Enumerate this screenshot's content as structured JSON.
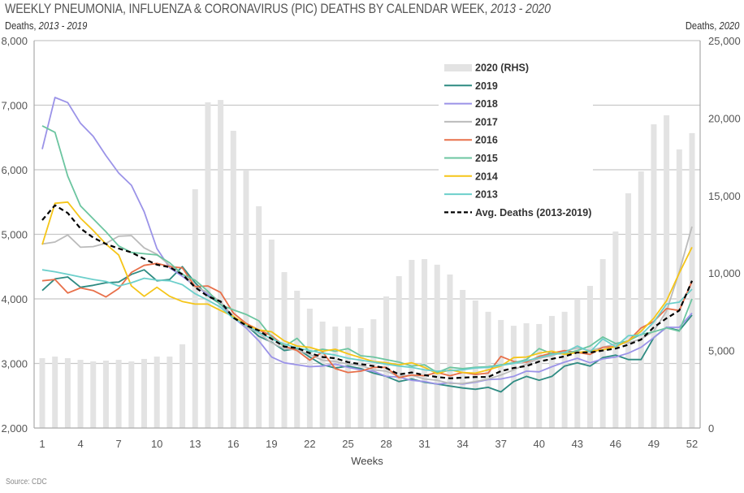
{
  "header": {
    "title_main": "WEEKLY PNEUMONIA, INFLUENZA & CORONAVIRUS (PIC) DEATHS BY CALENDAR WEEK, ",
    "title_italic": "2013 - 2020",
    "left_axis_title_main": "Deaths, ",
    "left_axis_title_italic": "2013 - 2019",
    "right_axis_title_main": "Deaths, ",
    "right_axis_title_italic": "2020"
  },
  "source": "Source: CDC",
  "chart_data": {
    "type": "bar+line",
    "title": "WEEKLY PNEUMONIA, INFLUENZA & CORONAVIRUS (PIC) DEATHS BY CALENDAR WEEK, 2013 - 2020",
    "xlabel": "Weeks",
    "ylabel_left": "Deaths, 2013 - 2019",
    "ylabel_right": "Deaths, 2020",
    "ylim_left": [
      2000,
      8000
    ],
    "ylim_right": [
      0,
      25000
    ],
    "yticks_left": [
      "2,000",
      "3,000",
      "4,000",
      "5,000",
      "6,000",
      "7,000",
      "8,000"
    ],
    "yticks_left_values": [
      2000,
      3000,
      4000,
      5000,
      6000,
      7000,
      8000
    ],
    "yticks_right": [
      "0",
      "5,000",
      "10,000",
      "15,000",
      "20,000",
      "25,000"
    ],
    "yticks_right_values": [
      0,
      5000,
      10000,
      15000,
      20000,
      25000
    ],
    "xticks": [
      1,
      4,
      7,
      10,
      13,
      16,
      19,
      22,
      25,
      28,
      31,
      34,
      37,
      40,
      43,
      46,
      49,
      52
    ],
    "xlim": [
      1,
      52
    ],
    "grid": true,
    "legend_position": "top-right",
    "x": [
      1,
      2,
      3,
      4,
      5,
      6,
      7,
      8,
      9,
      10,
      11,
      12,
      13,
      14,
      15,
      16,
      17,
      18,
      19,
      20,
      21,
      22,
      23,
      24,
      25,
      26,
      27,
      28,
      29,
      30,
      31,
      32,
      33,
      34,
      35,
      36,
      37,
      38,
      39,
      40,
      41,
      42,
      43,
      44,
      45,
      46,
      47,
      48,
      49,
      50,
      51,
      52
    ],
    "bars": {
      "name": "2020 (RHS)",
      "axis": "right",
      "color": "#e3e3e3",
      "values": [
        4510,
        4610,
        4510,
        4400,
        4300,
        4350,
        4400,
        4300,
        4460,
        4610,
        4610,
        5400,
        15410,
        21020,
        21170,
        19180,
        16610,
        14310,
        12160,
        10060,
        8860,
        7700,
        6870,
        6550,
        6550,
        6450,
        7020,
        8490,
        9800,
        10850,
        10900,
        10540,
        9910,
        8910,
        8230,
        7500,
        6970,
        6600,
        6760,
        6710,
        7230,
        7500,
        8330,
        9170,
        10900,
        12680,
        15150,
        16560,
        19600,
        20180,
        17980,
        19030
      ]
    },
    "series": [
      {
        "name": "2019",
        "color": "#2e8b82",
        "values": [
          4130,
          4310,
          4340,
          4180,
          4210,
          4250,
          4260,
          4380,
          4450,
          4280,
          4300,
          4500,
          4250,
          4050,
          3920,
          3720,
          3590,
          3420,
          3330,
          3200,
          3230,
          3100,
          2980,
          2930,
          2960,
          2920,
          2850,
          2800,
          2720,
          2760,
          2710,
          2680,
          2650,
          2620,
          2600,
          2630,
          2560,
          2720,
          2800,
          2740,
          2800,
          2960,
          3010,
          2960,
          3090,
          3130,
          3060,
          3060,
          3400,
          3560,
          3510,
          3750
        ]
      },
      {
        "name": "2018",
        "color": "#9b93e8",
        "values": [
          6320,
          7120,
          7040,
          6720,
          6520,
          6220,
          5950,
          5760,
          5350,
          4780,
          4480,
          4350,
          4200,
          4070,
          3940,
          3710,
          3550,
          3350,
          3100,
          3010,
          2980,
          2950,
          2960,
          2990,
          2940,
          2900,
          2880,
          2800,
          2790,
          2740,
          2720,
          2680,
          2700,
          2680,
          2710,
          2750,
          2760,
          2800,
          2880,
          2870,
          2950,
          3020,
          3080,
          3010,
          3070,
          3100,
          3160,
          3250,
          3400,
          3560,
          3560,
          3780
        ]
      },
      {
        "name": "2017",
        "color": "#bbbbbb",
        "values": [
          4850,
          4880,
          4990,
          4800,
          4810,
          4860,
          4970,
          4980,
          4790,
          4690,
          4520,
          4390,
          4190,
          4100,
          3950,
          3730,
          3570,
          3470,
          3320,
          3230,
          3210,
          3140,
          3050,
          3030,
          2990,
          2970,
          2900,
          2880,
          2800,
          2820,
          2760,
          2740,
          2690,
          2690,
          2720,
          2760,
          2820,
          2900,
          2990,
          3080,
          3120,
          3190,
          3240,
          3200,
          3250,
          3300,
          3320,
          3380,
          3500,
          3810,
          4420,
          5120
        ]
      },
      {
        "name": "2016",
        "color": "#e8704a",
        "values": [
          4280,
          4300,
          4090,
          4170,
          4130,
          4030,
          4160,
          4410,
          4520,
          4550,
          4500,
          4480,
          4190,
          4200,
          4100,
          3780,
          3620,
          3520,
          3430,
          3270,
          3200,
          3050,
          3180,
          2920,
          2860,
          2880,
          2940,
          2940,
          2780,
          2820,
          2810,
          2860,
          2810,
          2860,
          2830,
          2850,
          3110,
          3030,
          3020,
          3110,
          3160,
          3200,
          3170,
          3140,
          3250,
          3260,
          3350,
          3550,
          3650,
          3850,
          3820,
          4270
        ]
      },
      {
        "name": "2015",
        "color": "#6cc5a0",
        "values": [
          6680,
          6580,
          5900,
          5440,
          5240,
          5040,
          4820,
          4720,
          4700,
          4680,
          4560,
          4380,
          4290,
          4120,
          3910,
          3830,
          3760,
          3660,
          3410,
          3260,
          3390,
          3180,
          3220,
          3190,
          3230,
          3120,
          3100,
          3060,
          3020,
          2960,
          2980,
          2860,
          2940,
          2920,
          2940,
          2950,
          2980,
          3010,
          3060,
          3230,
          3150,
          3150,
          3200,
          3270,
          3410,
          3310,
          3350,
          3450,
          3490,
          3550,
          3500,
          4000
        ]
      },
      {
        "name": "2014",
        "color": "#f5c518",
        "values": [
          4840,
          5480,
          5500,
          5250,
          5060,
          4850,
          4680,
          4200,
          4040,
          4180,
          4040,
          3960,
          3920,
          3920,
          3820,
          3730,
          3600,
          3520,
          3490,
          3350,
          3270,
          3250,
          3190,
          3220,
          3150,
          3090,
          3030,
          3010,
          2980,
          3010,
          2940,
          2840,
          2900,
          2860,
          2850,
          2900,
          2960,
          3090,
          3100,
          3160,
          3190,
          3140,
          3170,
          3190,
          3210,
          3260,
          3350,
          3500,
          3700,
          3970,
          4400,
          4800
        ]
      },
      {
        "name": "2013",
        "color": "#6ccfcb",
        "values": [
          4450,
          4420,
          4380,
          4340,
          4300,
          4270,
          4200,
          4250,
          4320,
          4290,
          4280,
          4220,
          4080,
          3980,
          3870,
          3700,
          3590,
          3480,
          3380,
          3300,
          3240,
          3200,
          3160,
          3130,
          3080,
          3050,
          3020,
          2990,
          2960,
          2940,
          2900,
          2880,
          2890,
          2900,
          2930,
          2940,
          2970,
          3000,
          3040,
          3090,
          3140,
          3170,
          3270,
          3180,
          3380,
          3260,
          3430,
          3440,
          3640,
          3920,
          3950,
          4150
        ]
      },
      {
        "name": "Avg. Deaths (2013-2019)",
        "color": "#000000",
        "dashed": true,
        "values": [
          5220,
          5450,
          5330,
          5090,
          4950,
          4850,
          4780,
          4720,
          4620,
          4530,
          4490,
          4380,
          4180,
          4040,
          3960,
          3710,
          3590,
          3510,
          3380,
          3260,
          3240,
          3160,
          3100,
          3080,
          3020,
          2990,
          2960,
          2930,
          2830,
          2860,
          2820,
          2790,
          2770,
          2780,
          2790,
          2790,
          2880,
          2930,
          2960,
          3030,
          3070,
          3110,
          3170,
          3170,
          3200,
          3230,
          3290,
          3370,
          3560,
          3700,
          3820,
          4280
        ]
      }
    ]
  }
}
